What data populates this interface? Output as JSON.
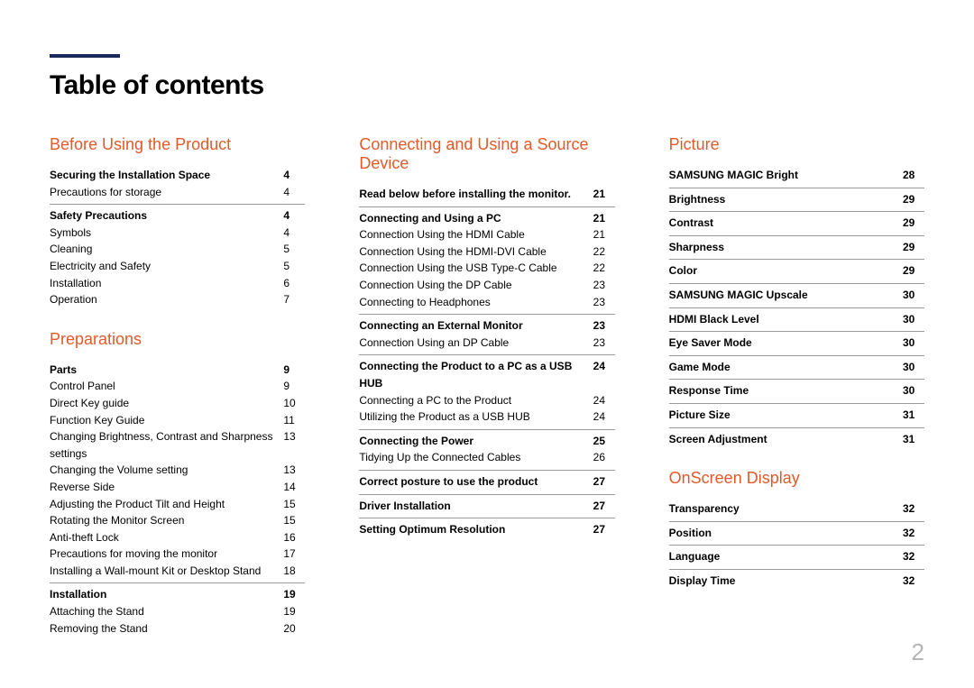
{
  "title": "Table of contents",
  "page_number": "2",
  "colors": {
    "accent_bar": "#1a2859",
    "section_heading": "#e15a29",
    "divider": "#9a9a9a",
    "page_num": "#b5b5b5",
    "text": "#000000",
    "background": "#ffffff"
  },
  "columns": [
    {
      "sections": [
        {
          "heading": "Before Using the Product",
          "groups": [
            {
              "head": {
                "label": "Securing the Installation Space",
                "page": "4"
              },
              "items": [
                {
                  "label": "Precautions for storage",
                  "page": "4"
                }
              ]
            },
            {
              "head": {
                "label": "Safety Precautions",
                "page": "4"
              },
              "items": [
                {
                  "label": "Symbols",
                  "page": "4"
                },
                {
                  "label": "Cleaning",
                  "page": "5"
                },
                {
                  "label": "Electricity and Safety",
                  "page": "5"
                },
                {
                  "label": "Installation",
                  "page": "6"
                },
                {
                  "label": "Operation",
                  "page": "7"
                }
              ]
            }
          ]
        },
        {
          "heading": "Preparations",
          "groups": [
            {
              "head": {
                "label": "Parts",
                "page": "9"
              },
              "items": [
                {
                  "label": "Control Panel",
                  "page": "9"
                },
                {
                  "label": "Direct Key guide",
                  "page": "10"
                },
                {
                  "label": "Function Key Guide",
                  "page": "11"
                },
                {
                  "label": "Changing Brightness, Contrast and Sharpness settings",
                  "page": "13"
                },
                {
                  "label": "Changing the Volume setting",
                  "page": "13"
                },
                {
                  "label": "Reverse Side",
                  "page": "14"
                },
                {
                  "label": "Adjusting the Product Tilt and Height",
                  "page": "15"
                },
                {
                  "label": "Rotating the Monitor Screen",
                  "page": "15"
                },
                {
                  "label": "Anti-theft Lock",
                  "page": "16"
                },
                {
                  "label": "Precautions for moving the monitor",
                  "page": "17"
                },
                {
                  "label": "Installing a Wall-mount Kit or Desktop Stand",
                  "page": "18"
                }
              ]
            },
            {
              "head": {
                "label": "Installation",
                "page": "19"
              },
              "items": [
                {
                  "label": "Attaching the Stand",
                  "page": "19"
                },
                {
                  "label": "Removing the Stand",
                  "page": "20"
                }
              ]
            }
          ]
        }
      ]
    },
    {
      "sections": [
        {
          "heading": "Connecting and Using a Source Device",
          "groups": [
            {
              "head": {
                "label": "Read below before installing the monitor.",
                "page": "21"
              },
              "items": []
            },
            {
              "head": {
                "label": "Connecting and Using a PC",
                "page": "21"
              },
              "items": [
                {
                  "label": "Connection Using the HDMI Cable",
                  "page": "21"
                },
                {
                  "label": "Connection Using the HDMI-DVI Cable",
                  "page": "22"
                },
                {
                  "label": "Connection Using the USB Type-C Cable",
                  "page": "22"
                },
                {
                  "label": "Connection Using the DP Cable",
                  "page": "23"
                },
                {
                  "label": "Connecting to Headphones",
                  "page": "23"
                }
              ]
            },
            {
              "head": {
                "label": "Connecting an External Monitor",
                "page": "23"
              },
              "items": [
                {
                  "label": "Connection Using an DP Cable",
                  "page": "23"
                }
              ]
            },
            {
              "head": {
                "label": "Connecting the Product to a PC as a USB HUB",
                "page": "24"
              },
              "items": [
                {
                  "label": "Connecting a PC to the Product",
                  "page": "24"
                },
                {
                  "label": "Utilizing the Product as a USB HUB",
                  "page": "24"
                }
              ]
            },
            {
              "head": {
                "label": "Connecting the Power",
                "page": "25"
              },
              "items": [
                {
                  "label": "Tidying Up the Connected Cables",
                  "page": "26"
                }
              ]
            },
            {
              "head": {
                "label": "Correct posture to use the product",
                "page": "27"
              },
              "items": []
            },
            {
              "head": {
                "label": "Driver Installation",
                "page": "27"
              },
              "items": []
            },
            {
              "head": {
                "label": "Setting Optimum Resolution",
                "page": "27"
              },
              "items": []
            }
          ]
        }
      ]
    },
    {
      "sections": [
        {
          "heading": "Picture",
          "groups": [
            {
              "head": {
                "label": "SAMSUNG MAGIC Bright",
                "page": "28"
              },
              "items": []
            },
            {
              "head": {
                "label": "Brightness",
                "page": "29"
              },
              "items": []
            },
            {
              "head": {
                "label": "Contrast",
                "page": "29"
              },
              "items": []
            },
            {
              "head": {
                "label": "Sharpness",
                "page": "29"
              },
              "items": []
            },
            {
              "head": {
                "label": "Color",
                "page": "29"
              },
              "items": []
            },
            {
              "head": {
                "label": "SAMSUNG MAGIC Upscale",
                "page": "30"
              },
              "items": []
            },
            {
              "head": {
                "label": "HDMI Black Level",
                "page": "30"
              },
              "items": []
            },
            {
              "head": {
                "label": "Eye Saver Mode",
                "page": "30"
              },
              "items": []
            },
            {
              "head": {
                "label": "Game Mode",
                "page": "30"
              },
              "items": []
            },
            {
              "head": {
                "label": "Response Time",
                "page": "30"
              },
              "items": []
            },
            {
              "head": {
                "label": "Picture Size",
                "page": "31"
              },
              "items": []
            },
            {
              "head": {
                "label": "Screen Adjustment",
                "page": "31"
              },
              "items": []
            }
          ]
        },
        {
          "heading": "OnScreen Display",
          "groups": [
            {
              "head": {
                "label": "Transparency",
                "page": "32"
              },
              "items": []
            },
            {
              "head": {
                "label": "Position",
                "page": "32"
              },
              "items": []
            },
            {
              "head": {
                "label": "Language",
                "page": "32"
              },
              "items": []
            },
            {
              "head": {
                "label": "Display Time",
                "page": "32"
              },
              "items": []
            }
          ]
        }
      ]
    }
  ]
}
